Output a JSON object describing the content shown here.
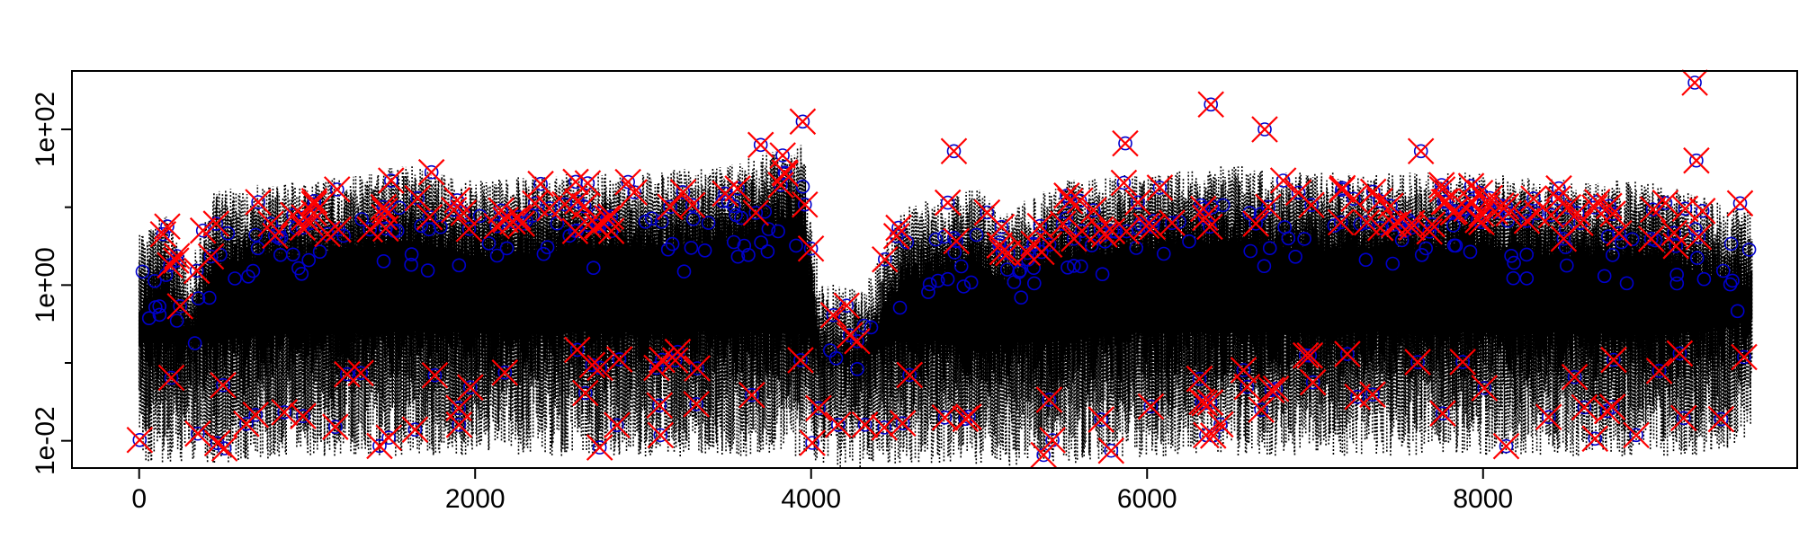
{
  "chart_data": {
    "type": "scatter",
    "title": "",
    "xlabel": "",
    "ylabel": "",
    "xlim": [
      -400,
      9870
    ],
    "ylim_log10": [
      -2.35,
      2.75
    ],
    "yscale": "log",
    "grid": false,
    "x_ticks": [
      {
        "value": 0,
        "label": "0"
      },
      {
        "value": 2000,
        "label": "2000"
      },
      {
        "value": 4000,
        "label": "4000"
      },
      {
        "value": 6000,
        "label": "6000"
      },
      {
        "value": 8000,
        "label": "8000"
      }
    ],
    "y_ticks": [
      {
        "log10": -2,
        "label": "1e-02"
      },
      {
        "log10": 0,
        "label": "1e+00"
      },
      {
        "log10": 2,
        "label": "1e+02"
      }
    ],
    "y_minor_ticks_log10": [
      -1,
      1
    ],
    "series_profile": {
      "x": [
        0,
        150,
        300,
        450,
        1000,
        1600,
        2000,
        2500,
        3000,
        3500,
        3950,
        4050,
        4300,
        4550,
        5000,
        5150,
        5500,
        6000,
        6500,
        7000,
        7500,
        8000,
        8500,
        9000,
        9300,
        9600
      ],
      "upper_log10": [
        0.4,
        0.7,
        0.0,
        1.0,
        1.1,
        1.3,
        1.1,
        1.2,
        1.2,
        1.3,
        1.6,
        -0.2,
        -0.3,
        0.8,
        1.0,
        0.7,
        1.1,
        1.2,
        1.3,
        1.2,
        1.2,
        1.2,
        1.1,
        1.1,
        0.9,
        0.7
      ],
      "lower_log10": [
        -2.3,
        -2.3,
        -2.3,
        -2.3,
        -2.2,
        -2.2,
        -2.2,
        -2.2,
        -2.2,
        -2.2,
        -2.2,
        -2.35,
        -2.35,
        -2.3,
        -2.3,
        -2.35,
        -2.3,
        -2.2,
        -2.2,
        -2.2,
        -2.2,
        -2.2,
        -2.2,
        -2.2,
        -2.2,
        -2.0
      ]
    },
    "series": [
      {
        "style": "dotted line",
        "color": "#000000",
        "samples": 9600
      },
      {
        "style": "open circle",
        "color": "#0000cc",
        "samples": 9600
      },
      {
        "style": "cross",
        "color": "#ff0000",
        "samples": 9600
      }
    ],
    "notable_points": [
      {
        "x": 380,
        "log10": 0.7
      },
      {
        "x": 1740,
        "log10": 1.45
      },
      {
        "x": 2390,
        "log10": 1.3
      },
      {
        "x": 3700,
        "log10": 1.8
      },
      {
        "x": 3950,
        "log10": 2.1
      },
      {
        "x": 4850,
        "log10": 1.72
      },
      {
        "x": 5870,
        "log10": 1.82
      },
      {
        "x": 6380,
        "log10": 2.32
      },
      {
        "x": 6700,
        "log10": 2.0
      },
      {
        "x": 7630,
        "log10": 1.72
      },
      {
        "x": 9260,
        "log10": 2.6
      },
      {
        "x": 9270,
        "log10": 1.6
      },
      {
        "x": 9530,
        "log10": 1.05
      }
    ]
  }
}
